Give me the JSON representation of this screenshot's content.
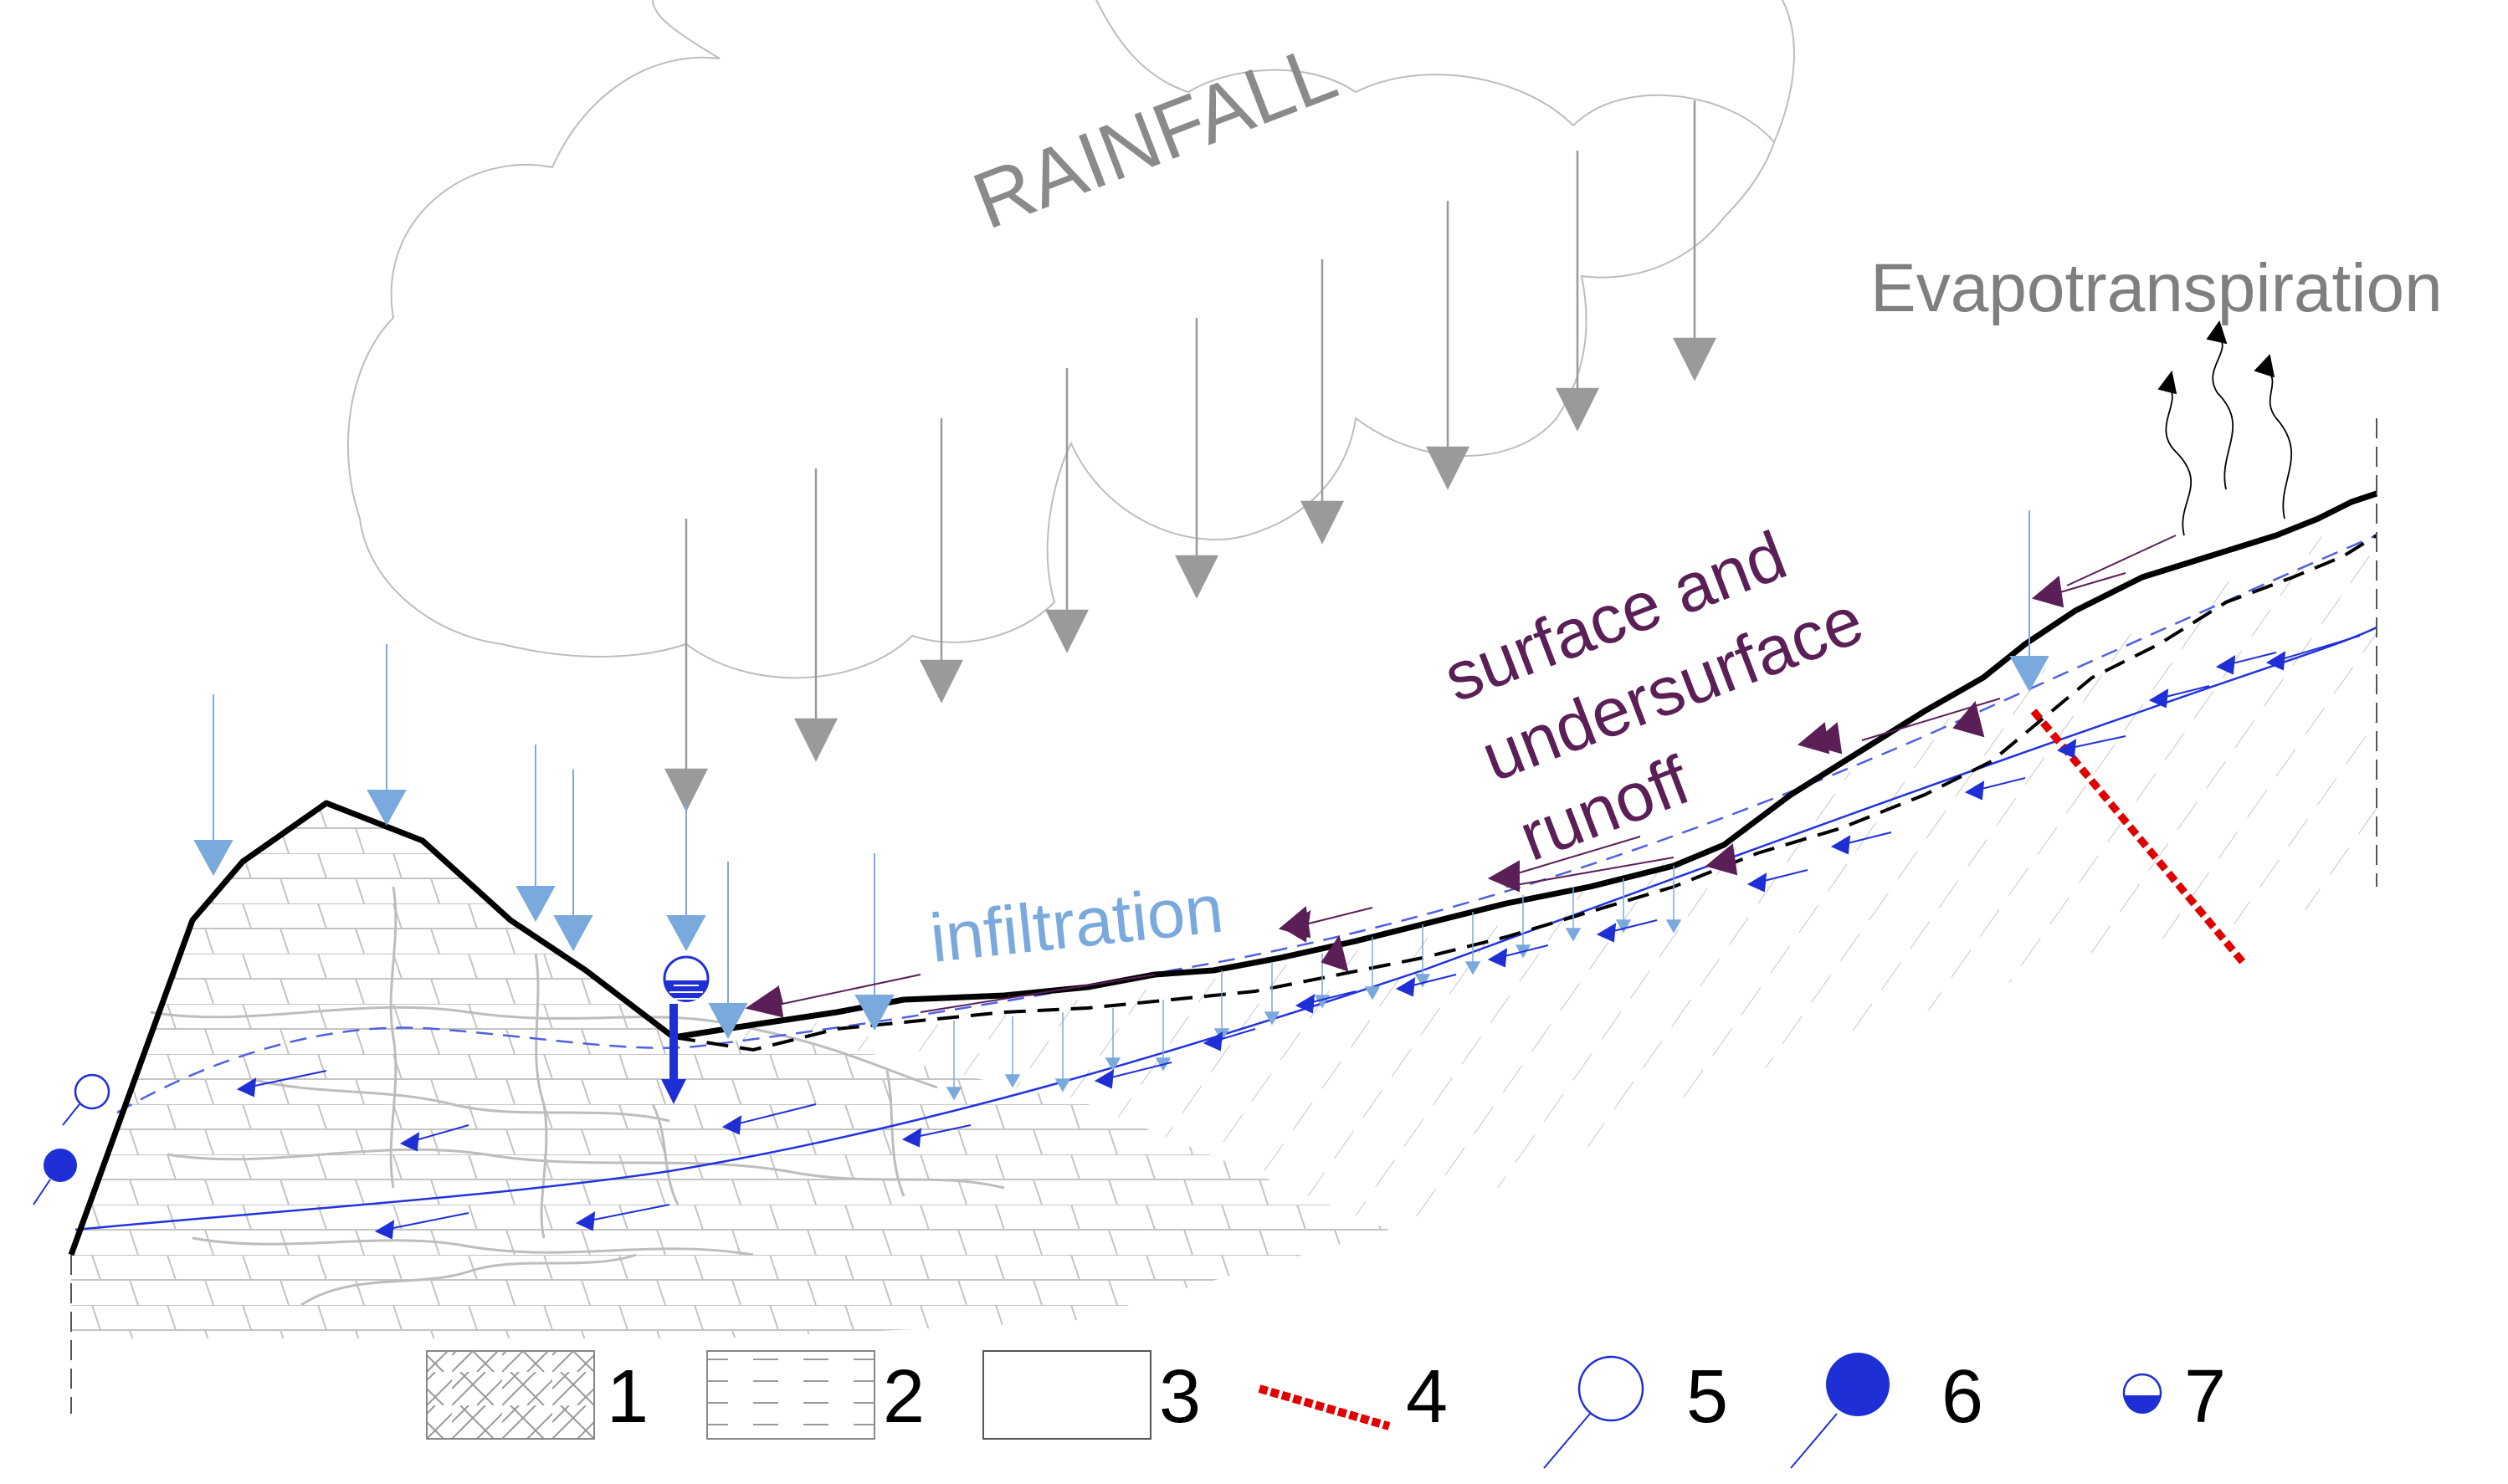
{
  "labels": {
    "rainfall": "RAINFALL",
    "evapotranspiration": "Evapotranspiration",
    "runoff_line1": "surface and",
    "runoff_line2": "undersurface",
    "runoff_line3": "runoff",
    "infiltration": "infiltration"
  },
  "legend": {
    "item1": "1",
    "item2": "2",
    "item3": "3",
    "item4": "4",
    "item5": "5",
    "item6": "6",
    "item7": "7"
  },
  "colors": {
    "rain_arrow": "#9a9a9a",
    "infiltration_arrow": "#7aa9dd",
    "runoff_arrow": "#5b1f57",
    "groundwater_flow": "#1f2fd6",
    "fault": "#e00000",
    "terrain": "#000000",
    "rock_texture": "#b8b8b8"
  }
}
